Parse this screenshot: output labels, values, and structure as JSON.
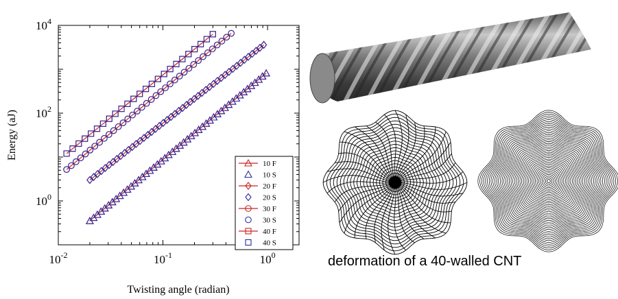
{
  "chart_data": {
    "type": "scatter",
    "scale": {
      "x": "log",
      "y": "log"
    },
    "xlabel": "Twisting angle (radian)",
    "ylabel": "Energy (aJ)",
    "xlim": [
      0.01,
      2
    ],
    "ylim": [
      0.1,
      10000
    ],
    "x_ticks": [
      {
        "value": 0.01,
        "base": "10",
        "exp": "-2"
      },
      {
        "value": 0.1,
        "base": "10",
        "exp": "-1"
      },
      {
        "value": 1,
        "base": "10",
        "exp": "0"
      }
    ],
    "y_ticks": [
      {
        "value": 1,
        "base": "10",
        "exp": "0"
      },
      {
        "value": 100,
        "base": "10",
        "exp": "2"
      },
      {
        "value": 10000,
        "base": "10",
        "exp": "4"
      }
    ],
    "legend": {
      "placement": "lower-right",
      "entries": [
        {
          "label": "10 F",
          "marker": "triangle",
          "color": "#cc2222",
          "line": true
        },
        {
          "label": "10 S",
          "marker": "triangle",
          "color": "#2a2a9e",
          "line": false
        },
        {
          "label": "20 F",
          "marker": "diamond",
          "color": "#cc2222",
          "line": true
        },
        {
          "label": "20 S",
          "marker": "diamond",
          "color": "#2a2a9e",
          "line": false
        },
        {
          "label": "30 F",
          "marker": "circle",
          "color": "#cc2222",
          "line": true
        },
        {
          "label": "30 S",
          "marker": "circle",
          "color": "#2a2a9e",
          "line": false
        },
        {
          "label": "40 F",
          "marker": "square",
          "color": "#cc2222",
          "line": true
        },
        {
          "label": "40 S",
          "marker": "square",
          "color": "#2a2a9e",
          "line": false
        }
      ]
    },
    "series": [
      {
        "name": "10",
        "marker": "triangle",
        "x_start": 0.02,
        "x_end": 0.97,
        "y_start": 0.35,
        "y_end": 810,
        "n": 48
      },
      {
        "name": "20",
        "marker": "diamond",
        "x_start": 0.02,
        "x_end": 0.92,
        "y_start": 3.0,
        "y_end": 3600,
        "n": 46
      },
      {
        "name": "30",
        "marker": "circle",
        "x_start": 0.012,
        "x_end": 0.45,
        "y_start": 5.2,
        "y_end": 6600,
        "n": 36
      },
      {
        "name": "40",
        "marker": "square",
        "x_start": 0.012,
        "x_end": 0.3,
        "y_start": 12,
        "y_end": 6300,
        "n": 25
      }
    ],
    "colors": {
      "F": "#cc2222",
      "S": "#2a2a9e"
    }
  },
  "illustration": {
    "caption": "deformation of a 40-walled CNT"
  }
}
